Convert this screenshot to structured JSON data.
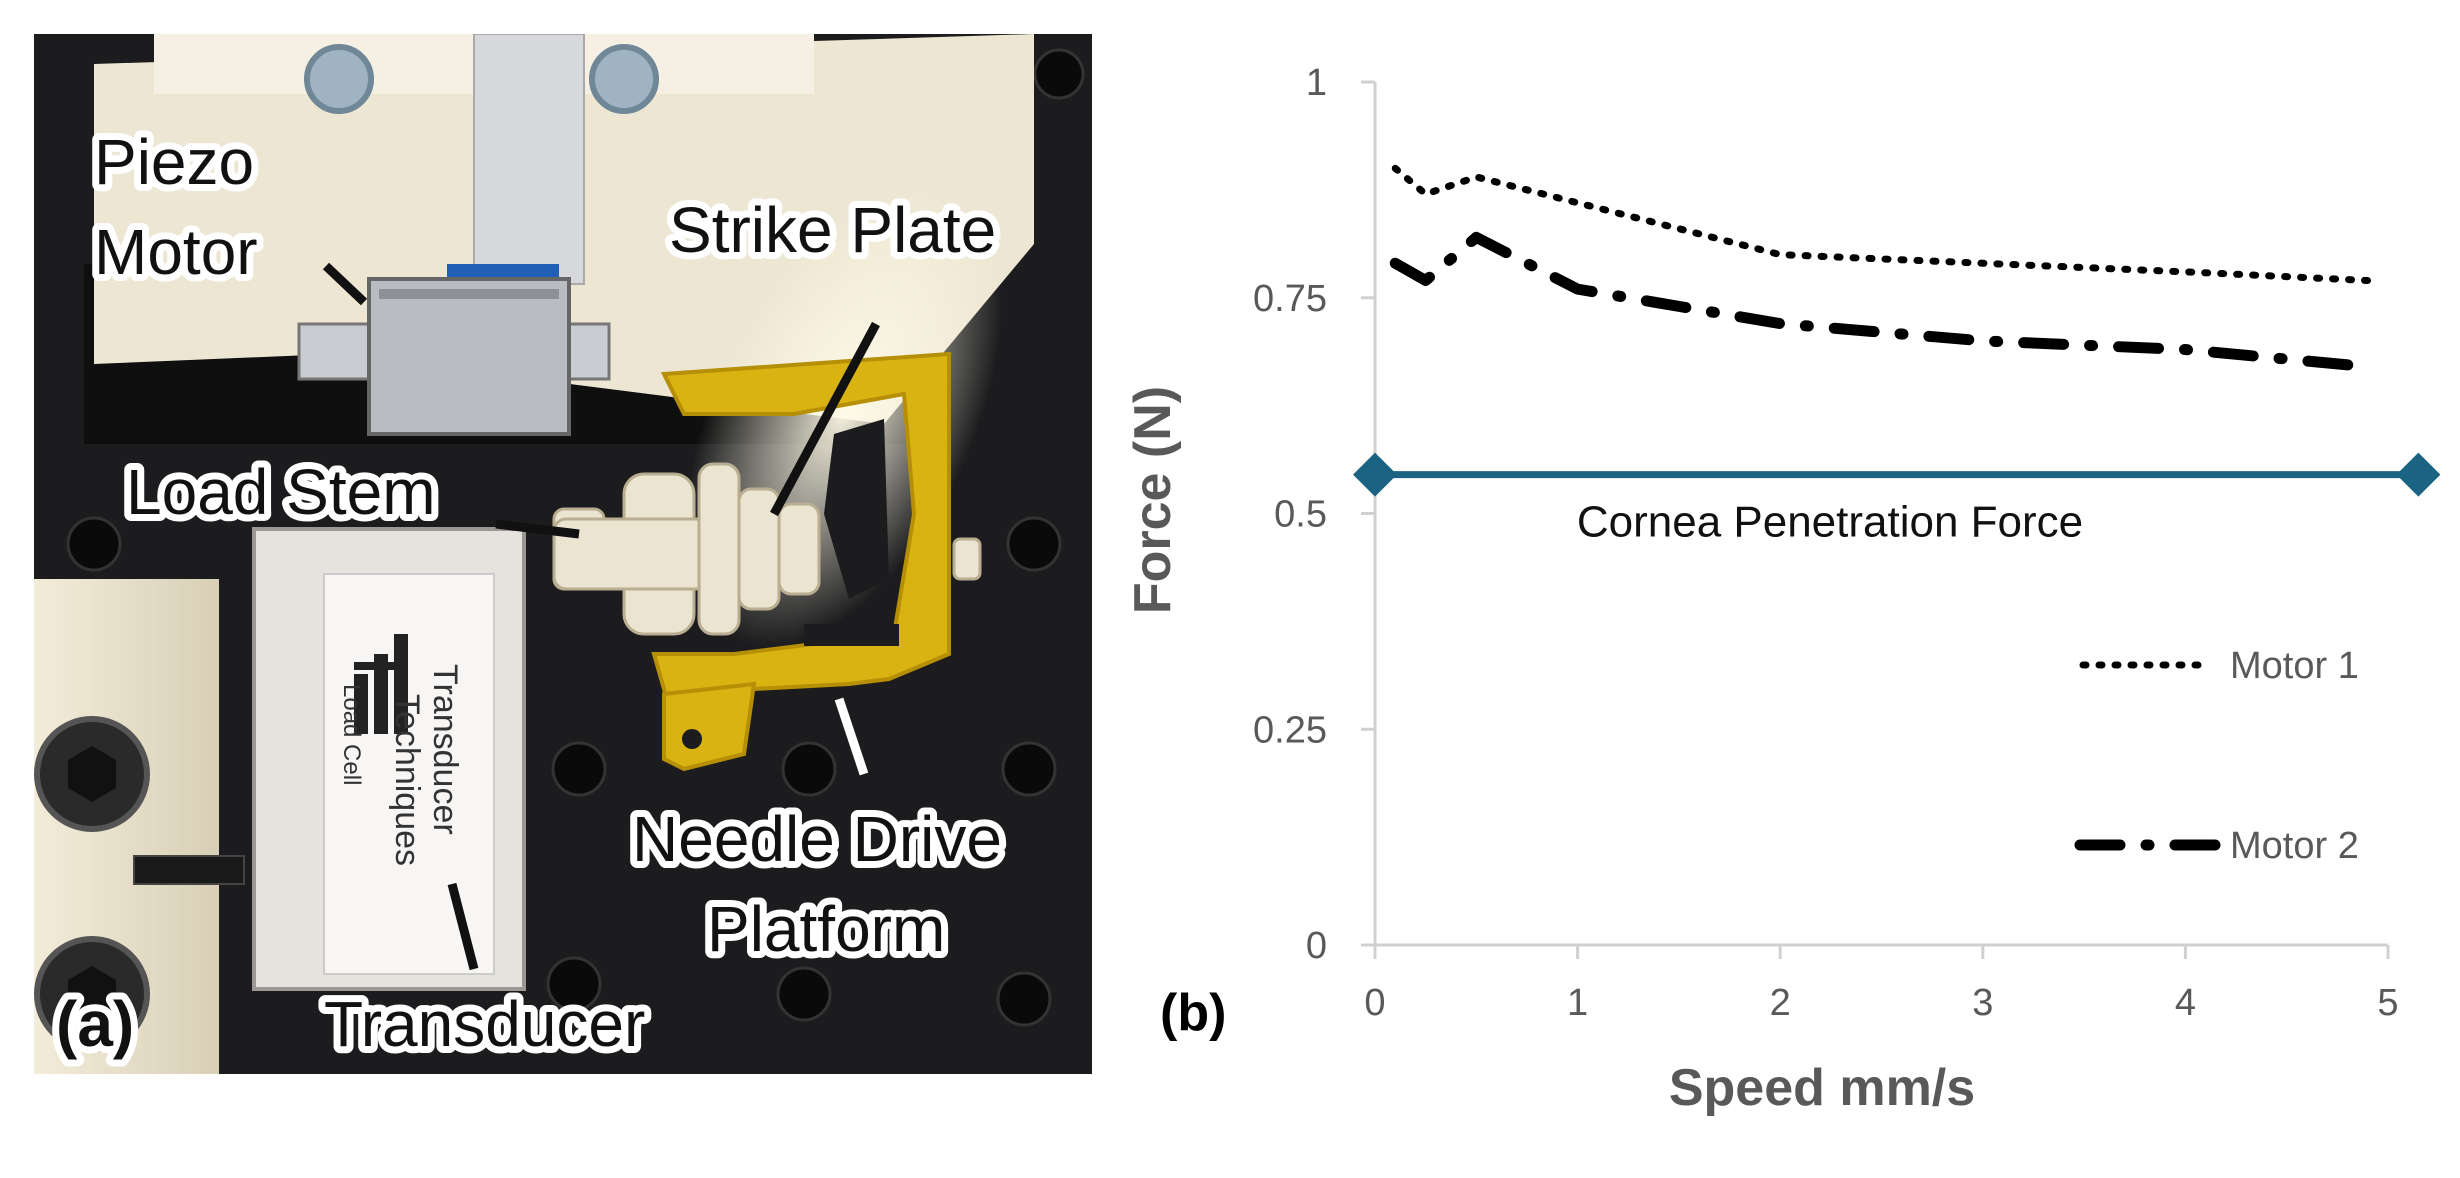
{
  "photo": {
    "panel_label": "(a)",
    "labels": {
      "piezo_motor": [
        "Piezo",
        "Motor"
      ],
      "strike_plate": "Strike Plate",
      "load_stem": "Load Stem",
      "needle_drive": [
        "Needle Drive",
        "Platform"
      ],
      "transducer": "Transducer"
    },
    "device_text": [
      "Transducer",
      "Techniques",
      "Load Cell"
    ],
    "colors": {
      "background": "#1c1c1e",
      "plastic": "#e9e2cf",
      "platform": "#d9b311",
      "ribbon_tab": "#1f5fb5"
    }
  },
  "chart_panel_label": "(b)",
  "chart_data": {
    "type": "line",
    "xlabel": "Speed mm/s",
    "ylabel": "Force (N)",
    "xlim": [
      0,
      5
    ],
    "ylim": [
      0,
      1
    ],
    "x_ticks": [
      "0",
      "1",
      "2",
      "3",
      "4",
      "5"
    ],
    "y_ticks": [
      "0",
      "0.25",
      "0.5",
      "0.75",
      "1"
    ],
    "grid": false,
    "legend_position": "right",
    "series": [
      {
        "name": "Motor 1",
        "style": "dotted",
        "color": "#000000",
        "x": [
          0.1,
          0.25,
          0.5,
          1,
          1.5,
          2,
          3,
          4,
          4.9
        ],
        "y": [
          0.9,
          0.87,
          0.89,
          0.86,
          0.83,
          0.8,
          0.79,
          0.78,
          0.77
        ]
      },
      {
        "name": "Motor 2",
        "style": "dash-dot",
        "color": "#000000",
        "x": [
          0.1,
          0.25,
          0.5,
          1,
          1.5,
          2,
          3,
          4,
          4.9
        ],
        "y": [
          0.79,
          0.77,
          0.82,
          0.76,
          0.74,
          0.72,
          0.7,
          0.69,
          0.67
        ]
      }
    ],
    "reference_line": {
      "label": "Cornea Penetration Force",
      "y": 0.545,
      "x": [
        0,
        5.15
      ],
      "color": "#1a6382",
      "marker": "diamond"
    }
  }
}
